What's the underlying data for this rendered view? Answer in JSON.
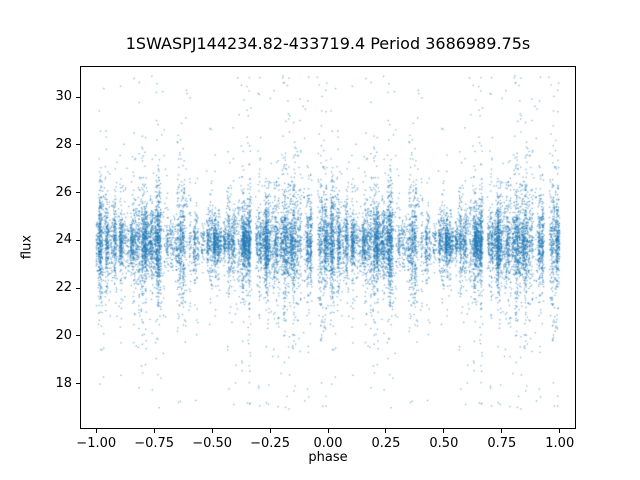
{
  "chart_data": {
    "type": "scatter",
    "title": "1SWASPJ144234.82-433719.4 Period 3686989.75s",
    "xlabel": "phase",
    "ylabel": "flux",
    "xlim": [
      -1.07,
      1.07
    ],
    "ylim": [
      16.1,
      31.3
    ],
    "xticks": [
      -1.0,
      -0.75,
      -0.5,
      -0.25,
      0.0,
      0.25,
      0.5,
      0.75,
      1.0
    ],
    "xtick_labels": [
      "−1.00",
      "−0.75",
      "−0.50",
      "−0.25",
      "0.00",
      "0.25",
      "0.50",
      "0.75",
      "1.00"
    ],
    "yticks": [
      18,
      20,
      22,
      24,
      26,
      28,
      30
    ],
    "ytick_labels": [
      "18",
      "20",
      "22",
      "24",
      "26",
      "28",
      "30"
    ],
    "grid": false,
    "legend": "none",
    "point_color": "#1f77b4",
    "point_alpha": 0.55,
    "background_color": "#ffffff",
    "axes_color": "#000000",
    "description": "Phase-folded light curve scatter; dense flux band centered near 24 with vertical streaks at discrete phases spanning roughly 17 to 31; pattern over phase 0..1 is duplicated at phase -1..0.",
    "scatter_model": {
      "seed": 1442348,
      "n_observations": 9000,
      "plotted_twice": true,
      "flux_center": 23.9,
      "core_std": 1.0,
      "streak_count": 240,
      "streak_phase_jitter": 0.0032,
      "tail_fraction": 0.12,
      "flux_min": 16.9,
      "flux_max": 30.9,
      "modulation": {
        "a1": 0.18,
        "p1": 1.6,
        "a2": 0.12,
        "p2": 4.0
      }
    }
  }
}
